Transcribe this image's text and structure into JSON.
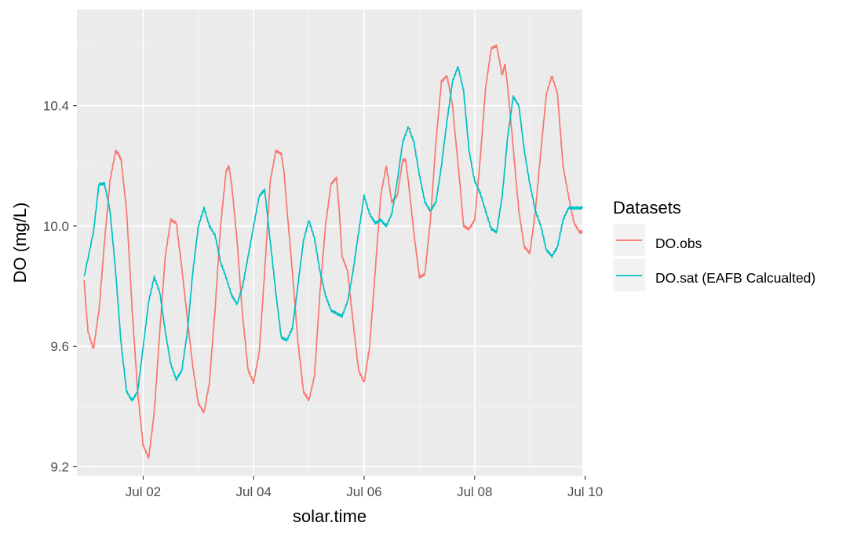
{
  "chart_data": {
    "type": "line",
    "xlabel": "solar.time",
    "ylabel": "DO (mg/L)",
    "x_ticks": [
      "Jul 02",
      "Jul 04",
      "Jul 06",
      "Jul 08",
      "Jul 10"
    ],
    "y_ticks": [
      "9.2",
      "9.6",
      "10.0",
      "10.4"
    ],
    "xlim": [
      0.8,
      9.95
    ],
    "ylim": [
      9.17,
      10.72
    ],
    "grid": true,
    "legend": {
      "title": "Datasets",
      "placement": "right"
    },
    "series": [
      {
        "name": "DO.obs",
        "color": "#F8766D",
        "x": [
          0.93,
          1.0,
          1.1,
          1.2,
          1.3,
          1.4,
          1.5,
          1.55,
          1.6,
          1.7,
          1.8,
          1.9,
          2.0,
          2.1,
          2.2,
          2.3,
          2.4,
          2.5,
          2.6,
          2.7,
          2.8,
          2.9,
          3.0,
          3.1,
          3.2,
          3.3,
          3.4,
          3.5,
          3.55,
          3.6,
          3.7,
          3.8,
          3.9,
          4.0,
          4.1,
          4.2,
          4.3,
          4.4,
          4.5,
          4.55,
          4.6,
          4.7,
          4.8,
          4.9,
          5.0,
          5.1,
          5.2,
          5.3,
          5.4,
          5.5,
          5.55,
          5.6,
          5.7,
          5.8,
          5.9,
          6.0,
          6.1,
          6.2,
          6.3,
          6.4,
          6.5,
          6.6,
          6.7,
          6.75,
          6.8,
          6.9,
          7.0,
          7.1,
          7.2,
          7.3,
          7.4,
          7.5,
          7.6,
          7.65,
          7.7,
          7.8,
          7.9,
          8.0,
          8.1,
          8.2,
          8.3,
          8.4,
          8.5,
          8.55,
          8.6,
          8.7,
          8.8,
          8.9,
          9.0,
          9.1,
          9.2,
          9.3,
          9.4,
          9.5,
          9.55,
          9.6,
          9.7,
          9.8,
          9.9,
          9.95
        ],
        "values": [
          9.82,
          9.65,
          9.59,
          9.72,
          9.95,
          10.15,
          10.25,
          10.24,
          10.22,
          10.05,
          9.72,
          9.45,
          9.27,
          9.23,
          9.38,
          9.65,
          9.9,
          10.02,
          10.01,
          9.86,
          9.69,
          9.53,
          9.41,
          9.38,
          9.48,
          9.72,
          10.0,
          10.18,
          10.2,
          10.14,
          9.95,
          9.7,
          9.52,
          9.48,
          9.58,
          9.85,
          10.15,
          10.25,
          10.24,
          10.18,
          10.06,
          9.85,
          9.62,
          9.45,
          9.42,
          9.5,
          9.78,
          10.0,
          10.14,
          10.16,
          10.05,
          9.9,
          9.85,
          9.68,
          9.52,
          9.48,
          9.6,
          9.85,
          10.1,
          10.2,
          10.08,
          10.1,
          10.22,
          10.22,
          10.15,
          9.98,
          9.83,
          9.84,
          10.02,
          10.28,
          10.48,
          10.5,
          10.4,
          10.3,
          10.21,
          10.0,
          9.99,
          10.02,
          10.22,
          10.46,
          10.59,
          10.6,
          10.5,
          10.54,
          10.46,
          10.26,
          10.05,
          9.93,
          9.91,
          10.05,
          10.25,
          10.44,
          10.5,
          10.44,
          10.32,
          10.2,
          10.1,
          10.01,
          9.98,
          9.98
        ]
      },
      {
        "name": "DO.sat (EAFB Calcualted)",
        "color": "#00BFC4",
        "x": [
          0.93,
          1.1,
          1.2,
          1.3,
          1.4,
          1.5,
          1.6,
          1.7,
          1.8,
          1.9,
          2.0,
          2.1,
          2.2,
          2.3,
          2.4,
          2.5,
          2.6,
          2.7,
          2.8,
          2.9,
          3.0,
          3.1,
          3.2,
          3.3,
          3.4,
          3.5,
          3.6,
          3.7,
          3.8,
          3.9,
          4.0,
          4.1,
          4.2,
          4.3,
          4.4,
          4.5,
          4.6,
          4.7,
          4.8,
          4.9,
          5.0,
          5.1,
          5.2,
          5.3,
          5.4,
          5.5,
          5.6,
          5.7,
          5.8,
          5.9,
          6.0,
          6.1,
          6.2,
          6.3,
          6.4,
          6.5,
          6.6,
          6.7,
          6.8,
          6.9,
          7.0,
          7.1,
          7.2,
          7.3,
          7.4,
          7.5,
          7.6,
          7.7,
          7.8,
          7.9,
          8.0,
          8.1,
          8.2,
          8.3,
          8.4,
          8.5,
          8.6,
          8.7,
          8.8,
          8.9,
          9.0,
          9.1,
          9.2,
          9.3,
          9.4,
          9.5,
          9.6,
          9.7,
          9.8,
          9.9,
          9.95
        ],
        "values": [
          9.83,
          9.98,
          10.14,
          10.14,
          10.05,
          9.85,
          9.61,
          9.45,
          9.42,
          9.45,
          9.6,
          9.75,
          9.83,
          9.78,
          9.65,
          9.54,
          9.49,
          9.52,
          9.65,
          9.85,
          10.0,
          10.06,
          10.0,
          9.97,
          9.88,
          9.83,
          9.77,
          9.74,
          9.8,
          9.9,
          10.0,
          10.1,
          10.12,
          9.95,
          9.78,
          9.63,
          9.62,
          9.66,
          9.8,
          9.95,
          10.02,
          9.96,
          9.85,
          9.77,
          9.72,
          9.71,
          9.7,
          9.75,
          9.85,
          9.98,
          10.1,
          10.04,
          10.01,
          10.02,
          10.0,
          10.04,
          10.15,
          10.28,
          10.33,
          10.28,
          10.17,
          10.08,
          10.05,
          10.08,
          10.2,
          10.35,
          10.48,
          10.53,
          10.45,
          10.25,
          10.15,
          10.11,
          10.05,
          9.99,
          9.98,
          10.1,
          10.3,
          10.43,
          10.4,
          10.25,
          10.14,
          10.05,
          10.0,
          9.92,
          9.9,
          9.93,
          10.02,
          10.06,
          10.06,
          10.06,
          10.06
        ]
      }
    ]
  }
}
